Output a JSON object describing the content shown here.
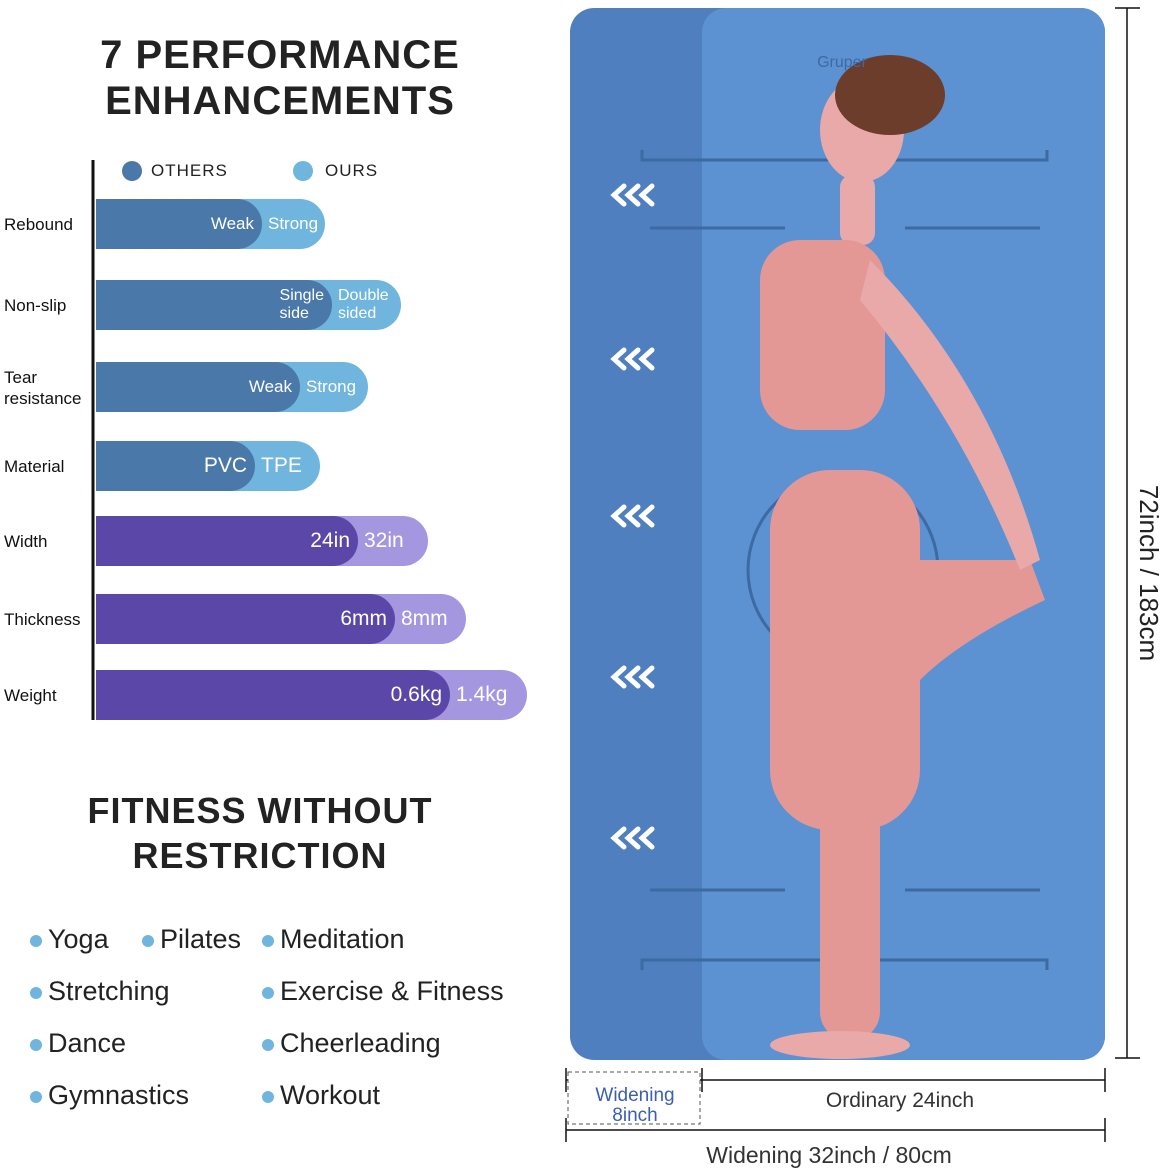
{
  "heading": {
    "lines": [
      "7 PERFORMANCE",
      "ENHANCEMENTS"
    ]
  },
  "legend": {
    "others": "OTHERS",
    "ours": "OURS"
  },
  "comparison": [
    {
      "feature": "Rebound",
      "others": "Weak",
      "ours": "Strong"
    },
    {
      "feature": "Non-slip",
      "others": "Single\nside",
      "ours": "Double\nsided"
    },
    {
      "feature": "Tear\nresistance",
      "others": "Weak",
      "ours": "Strong"
    },
    {
      "feature": "Material",
      "others": "PVC",
      "ours": "TPE"
    },
    {
      "feature": "Width",
      "others": "24in",
      "ours": "32in"
    },
    {
      "feature": "Thickness",
      "others": "6mm",
      "ours": "8mm"
    },
    {
      "feature": "Weight",
      "others": "0.6kg",
      "ours": "1.4kg"
    }
  ],
  "subheading": {
    "lines": [
      "FITNESS WITHOUT",
      "RESTRICTION"
    ]
  },
  "activities": [
    [
      "Yoga",
      "Pilates",
      "Meditation"
    ],
    [
      "Stretching",
      "Exercise & Fitness"
    ],
    [
      "Dance",
      "Cheerleading"
    ],
    [
      "Gymnastics",
      "Workout"
    ]
  ],
  "mat": {
    "brand": "Gruper",
    "length": "72inch / 183cm",
    "widening": "Widening\n8inch",
    "ordinary": "Ordinary 24inch",
    "total": "Widening 32inch / 80cm"
  }
}
